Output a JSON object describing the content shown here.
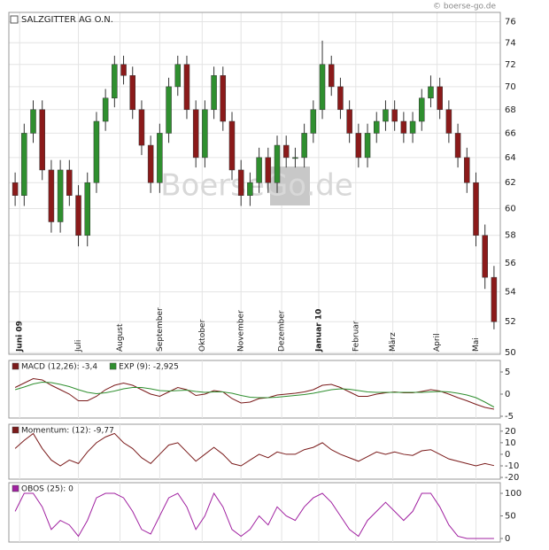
{
  "chart_data": [
    {
      "type": "candlestick",
      "title": "SALZGITTER AG O.N.",
      "watermark": "BoerseGo.de",
      "credit": "© boerse-go.de",
      "log_scale": true,
      "grid": true,
      "up_color": "#2f8f2f",
      "down_color": "#8b1a1a",
      "xlim": [
        -0.5,
        53.5
      ],
      "xticks": [
        {
          "value": 0.5,
          "label": "Juni 09"
        },
        {
          "value": 7,
          "label": "Juli"
        },
        {
          "value": 11.6,
          "label": "August"
        },
        {
          "value": 16,
          "label": "September"
        },
        {
          "value": 20.7,
          "label": "Oktober"
        },
        {
          "value": 25,
          "label": "November"
        },
        {
          "value": 29.5,
          "label": "Dezember"
        },
        {
          "value": 33.6,
          "label": "Januar 10"
        },
        {
          "value": 37.7,
          "label": "Februar"
        },
        {
          "value": 41.8,
          "label": "März"
        },
        {
          "value": 46.7,
          "label": "April"
        },
        {
          "value": 51,
          "label": "Mai"
        }
      ],
      "ylim": [
        49.9,
        76.9
      ],
      "yticks": [
        50,
        52,
        54,
        56,
        58,
        60,
        62,
        64,
        66,
        68,
        70,
        72,
        74,
        76
      ],
      "open": [
        62,
        61,
        66,
        68,
        63,
        59,
        63,
        61,
        58,
        62,
        67,
        69,
        72,
        71,
        68,
        65,
        62,
        66,
        70,
        72,
        68,
        64,
        68,
        71,
        67,
        63,
        61,
        62,
        64,
        62,
        65,
        64,
        64,
        66,
        68,
        72,
        70,
        68,
        66,
        64,
        66,
        67,
        68,
        67,
        66,
        67,
        69,
        70,
        68,
        66,
        64,
        62,
        58,
        55
      ],
      "high": [
        62.8,
        66.8,
        68.8,
        68.8,
        63.8,
        63.8,
        63.8,
        61.8,
        62.8,
        67.8,
        69.8,
        72.8,
        72.8,
        71.8,
        68.8,
        65.8,
        66.8,
        70.8,
        72.8,
        72.8,
        68.8,
        68.8,
        71.8,
        71.8,
        67.8,
        63.8,
        62.8,
        64.8,
        64.8,
        65.8,
        65.8,
        64.8,
        66.8,
        68.8,
        74.2,
        72.8,
        70.8,
        68.8,
        66.8,
        66.8,
        67.8,
        68.8,
        68.8,
        67.8,
        67.8,
        69.8,
        71,
        70.8,
        68.8,
        66.8,
        64.8,
        62.8,
        58.8,
        55.8
      ],
      "low": [
        60.2,
        60.2,
        65.2,
        62.2,
        58.2,
        58.2,
        60.2,
        57.2,
        57.2,
        61.2,
        66.2,
        68.2,
        70.2,
        67.2,
        64.2,
        61.2,
        61.2,
        65.2,
        69.2,
        67.2,
        63.2,
        63.2,
        67.2,
        66.2,
        62.2,
        60.2,
        60.2,
        61.2,
        61.2,
        61.2,
        63.2,
        63.2,
        63.2,
        65.2,
        67.2,
        69.2,
        67.2,
        65.2,
        63.2,
        63.2,
        65.2,
        66.2,
        66.2,
        65.2,
        65.2,
        66.2,
        68.2,
        67.2,
        65.2,
        63.2,
        61.2,
        57.2,
        54.2,
        51.5
      ],
      "close": [
        61,
        66,
        68,
        63,
        59,
        63,
        61,
        58,
        62,
        67,
        69,
        72,
        71,
        68,
        65,
        62,
        66,
        70,
        72,
        68,
        64,
        68,
        71,
        67,
        63,
        61,
        62,
        64,
        62,
        65,
        64,
        64,
        66,
        68,
        72,
        70,
        68,
        66,
        64,
        66,
        67,
        68,
        67,
        66,
        67,
        69,
        70,
        68,
        66,
        64,
        62,
        58,
        55,
        52
      ]
    },
    {
      "type": "line",
      "ylim": [
        -5.4,
        7.6
      ],
      "yticks": [
        -5,
        0,
        5
      ],
      "series": [
        {
          "name": "MACD (12,26): -3,4",
          "color": "#7a1a1a",
          "values": [
            1.5,
            2.5,
            3.5,
            3.2,
            2,
            1,
            0,
            -1.5,
            -1.5,
            -0.5,
            1,
            2,
            2.5,
            2,
            1,
            0,
            -0.5,
            0.5,
            1.5,
            1,
            -0.3,
            0,
            0.8,
            0.5,
            -1,
            -2,
            -1.8,
            -1,
            -0.8,
            -0.2,
            0,
            0.2,
            0.5,
            1,
            2,
            2.2,
            1.5,
            0.5,
            -0.5,
            -0.5,
            0,
            0.3,
            0.5,
            0.3,
            0.3,
            0.6,
            1,
            0.7,
            0,
            -0.8,
            -1.5,
            -2.3,
            -3,
            -3.4
          ]
        },
        {
          "name": "EXP (9): -2,925",
          "color": "#2f8f2f",
          "values": [
            1,
            1.6,
            2.3,
            2.7,
            2.6,
            2.2,
            1.7,
            1,
            0.4,
            0.1,
            0.3,
            0.7,
            1.2,
            1.5,
            1.5,
            1.2,
            0.8,
            0.7,
            0.8,
            0.9,
            0.6,
            0.4,
            0.5,
            0.5,
            0.2,
            -0.3,
            -0.7,
            -0.8,
            -0.8,
            -0.7,
            -0.5,
            -0.3,
            -0.1,
            0.2,
            0.6,
            1,
            1.2,
            1.1,
            0.8,
            0.5,
            0.4,
            0.4,
            0.4,
            0.4,
            0.4,
            0.4,
            0.5,
            0.6,
            0.5,
            0.2,
            -0.2,
            -0.8,
            -1.8,
            -2.925
          ]
        }
      ]
    },
    {
      "type": "line",
      "ylim": [
        -21.5,
        26
      ],
      "yticks": [
        -20,
        -10,
        0,
        10,
        20
      ],
      "series": [
        {
          "name": "Momentum: (12): -9,77",
          "color": "#7a1a1a",
          "values": [
            5,
            12,
            18,
            5,
            -5,
            -10,
            -5,
            -8,
            2,
            10,
            15,
            18,
            10,
            5,
            -3,
            -8,
            0,
            8,
            10,
            2,
            -6,
            0,
            6,
            0,
            -8,
            -10,
            -5,
            0,
            -3,
            2,
            0,
            0,
            4,
            6,
            10,
            4,
            0,
            -3,
            -6,
            -2,
            2,
            0,
            2,
            0,
            -1,
            3,
            4,
            0,
            -4,
            -6,
            -8,
            -10,
            -8,
            -9.77
          ]
        }
      ]
    },
    {
      "type": "line",
      "ylim": [
        -7.8,
        123.5
      ],
      "yticks": [
        0,
        50,
        100
      ],
      "series": [
        {
          "name": "OBOS (25): 0",
          "color": "#a020a0",
          "values": [
            60,
            100,
            100,
            70,
            20,
            40,
            30,
            5,
            40,
            90,
            100,
            100,
            90,
            60,
            20,
            10,
            50,
            90,
            100,
            70,
            20,
            50,
            100,
            70,
            20,
            5,
            20,
            50,
            30,
            70,
            50,
            40,
            70,
            90,
            100,
            80,
            50,
            20,
            5,
            40,
            60,
            80,
            60,
            40,
            60,
            100,
            100,
            70,
            30,
            5,
            0,
            0,
            0,
            0
          ]
        }
      ]
    }
  ]
}
